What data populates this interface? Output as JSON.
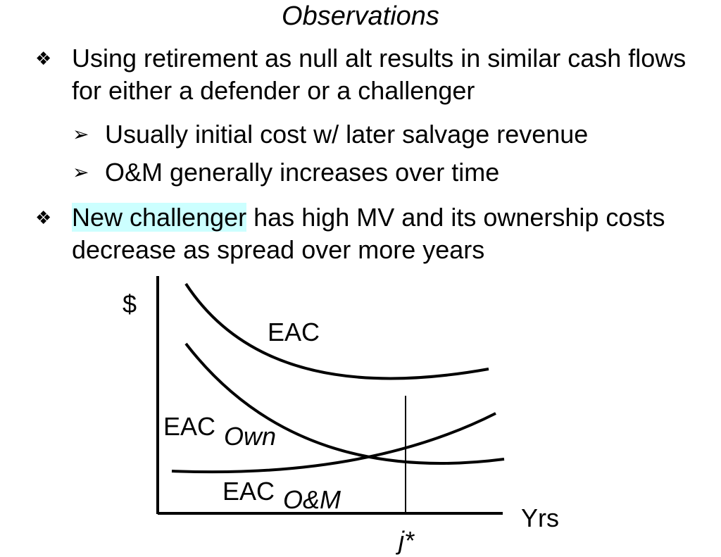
{
  "slide": {
    "title": "Observations",
    "bullets": [
      {
        "glyph": "❖",
        "text": "Using retirement as null alt results in similar cash flows for either a defender or a challenger",
        "sub": [
          {
            "glyph": "➢",
            "text": "Usually initial cost w/ later salvage revenue"
          },
          {
            "glyph": "➢",
            "text": "O&M generally increases over time"
          }
        ]
      },
      {
        "glyph": "❖",
        "highlight": "New challenger",
        "rest": " has high MV and its ownership costs decrease as spread over more years",
        "highlight_color": "#ccffff"
      }
    ]
  },
  "diagram": {
    "y_axis_label": "$",
    "x_axis_label": "Yrs",
    "marker_label": "j*",
    "curves": [
      {
        "name": "EAC",
        "label": "EAC",
        "subscript": ""
      },
      {
        "name": "EAC-own",
        "label": "EAC",
        "subscript": "Own"
      },
      {
        "name": "EAC-om",
        "label": "EAC",
        "subscript": "O&M"
      }
    ]
  }
}
